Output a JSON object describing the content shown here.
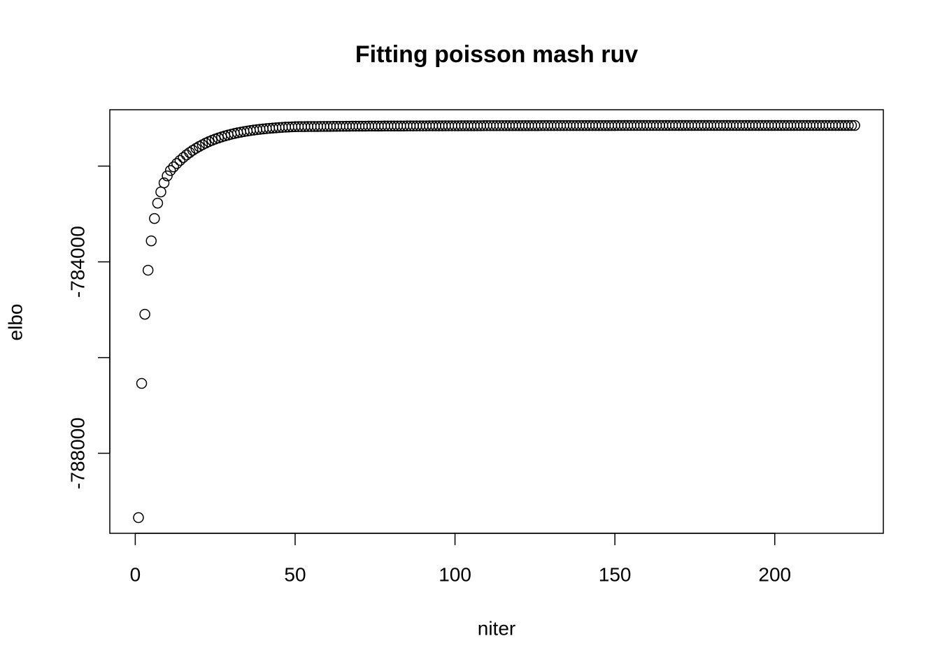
{
  "chart_data": {
    "type": "scatter",
    "title": "Fitting poisson mash ruv",
    "xlabel": "niter",
    "ylabel": "elbo",
    "x": [
      1,
      2,
      3,
      4,
      5,
      6,
      7,
      8,
      9,
      10,
      11,
      12,
      13,
      14,
      15,
      16,
      17,
      18,
      19,
      20,
      21,
      22,
      23,
      24,
      25,
      26,
      27,
      28,
      29,
      30,
      31,
      32,
      33,
      34,
      35,
      36,
      37,
      38,
      39,
      40,
      41,
      42,
      43,
      44,
      45,
      46,
      47,
      48,
      49,
      50,
      51,
      52,
      53,
      54,
      55,
      56,
      57,
      58,
      59,
      60,
      61,
      62,
      63,
      64,
      65,
      66,
      67,
      68,
      69,
      70,
      71,
      72,
      73,
      74,
      75,
      76,
      77,
      78,
      79,
      80,
      81,
      82,
      83,
      84,
      85,
      86,
      87,
      88,
      89,
      90,
      91,
      92,
      93,
      94,
      95,
      96,
      97,
      98,
      99,
      100,
      101,
      102,
      103,
      104,
      105,
      106,
      107,
      108,
      109,
      110,
      111,
      112,
      113,
      114,
      115,
      116,
      117,
      118,
      119,
      120,
      121,
      122,
      123,
      124,
      125,
      126,
      127,
      128,
      129,
      130,
      131,
      132,
      133,
      134,
      135,
      136,
      137,
      138,
      139,
      140,
      141,
      142,
      143,
      144,
      145,
      146,
      147,
      148,
      149,
      150,
      151,
      152,
      153,
      154,
      155,
      156,
      157,
      158,
      159,
      160,
      161,
      162,
      163,
      164,
      165,
      166,
      167,
      168,
      169,
      170,
      171,
      172,
      173,
      174,
      175,
      176,
      177,
      178,
      179,
      180,
      181,
      182,
      183,
      184,
      185,
      186,
      187,
      188,
      189,
      190,
      191,
      192,
      193,
      194,
      195,
      196,
      197,
      198,
      199,
      200,
      201,
      202,
      203,
      204,
      205,
      206,
      207,
      208,
      209,
      210,
      211,
      212,
      213,
      214,
      215,
      216,
      217,
      218,
      219,
      220,
      221,
      222,
      223,
      224,
      225
    ],
    "values": [
      -789343,
      -786540,
      -785095,
      -784175,
      -783562,
      -783095,
      -782774,
      -782540,
      -782350,
      -782204,
      -782092,
      -782016,
      -781946,
      -781881,
      -781822,
      -781767,
      -781717,
      -781671,
      -781629,
      -781590,
      -781554,
      -781521,
      -781490,
      -781462,
      -781436,
      -781413,
      -781391,
      -781371,
      -781352,
      -781335,
      -781320,
      -781305,
      -781292,
      -781280,
      -781269,
      -781258,
      -781249,
      -781240,
      -781232,
      -781225,
      -781218,
      -781212,
      -781206,
      -781201,
      -781196,
      -781191,
      -781187,
      -781184,
      -781180,
      -781177,
      -781176,
      -781176,
      -781175,
      -781174,
      -781174,
      -781173,
      -781173,
      -781172,
      -781172,
      -781171,
      -781171,
      -781170,
      -781170,
      -781169,
      -781169,
      -781168,
      -781168,
      -781167,
      -781167,
      -781166,
      -781166,
      -781166,
      -781165,
      -781165,
      -781164,
      -781164,
      -781164,
      -781163,
      -781163,
      -781163,
      -781162,
      -781162,
      -781162,
      -781162,
      -781161,
      -781161,
      -781161,
      -781160,
      -781160,
      -781160,
      -781160,
      -781159,
      -781159,
      -781159,
      -781159,
      -781159,
      -781158,
      -781158,
      -781158,
      -781158,
      -781158,
      -781157,
      -781157,
      -781157,
      -781157,
      -781157,
      -781157,
      -781157,
      -781156,
      -781156,
      -781156,
      -781156,
      -781156,
      -781156,
      -781156,
      -781155,
      -781155,
      -781155,
      -781155,
      -781155,
      -781155,
      -781155,
      -781155,
      -781155,
      -781155,
      -781155,
      -781154,
      -781154,
      -781154,
      -781154,
      -781154,
      -781154,
      -781154,
      -781154,
      -781154,
      -781154,
      -781153,
      -781153,
      -781153,
      -781153,
      -781153,
      -781153,
      -781153,
      -781153,
      -781153,
      -781153,
      -781153,
      -781153,
      -781153,
      -781153,
      -781152,
      -781152,
      -781152,
      -781152,
      -781152,
      -781152,
      -781152,
      -781152,
      -781152,
      -781152,
      -781152,
      -781152,
      -781152,
      -781152,
      -781152,
      -781151,
      -781151,
      -781151,
      -781151,
      -781151,
      -781151,
      -781151,
      -781151,
      -781151,
      -781151,
      -781151,
      -781151,
      -781151,
      -781151,
      -781151,
      -781151,
      -781151,
      -781151,
      -781151,
      -781151,
      -781151,
      -781151,
      -781151,
      -781151,
      -781151,
      -781151,
      -781151,
      -781151,
      -781151,
      -781151,
      -781151,
      -781151,
      -781151,
      -781151,
      -781151,
      -781151,
      -781151,
      -781151,
      -781151,
      -781151,
      -781151,
      -781151,
      -781151,
      -781151,
      -781151,
      -781151,
      -781151,
      -781151,
      -781151,
      -781151,
      -781151,
      -781151,
      -781151,
      -781151,
      -781151,
      -781151,
      -781151,
      -781151,
      -781151,
      -781151
    ],
    "color": "#000000",
    "xlim": [
      -7.96,
      233.96
    ],
    "ylim": [
      -789671,
      -780823
    ],
    "xticks": [
      0,
      50,
      100,
      150,
      200
    ],
    "yticks": [
      -788000,
      -784000
    ],
    "yminorticks": [
      -786000,
      -782000
    ],
    "grid": false
  }
}
